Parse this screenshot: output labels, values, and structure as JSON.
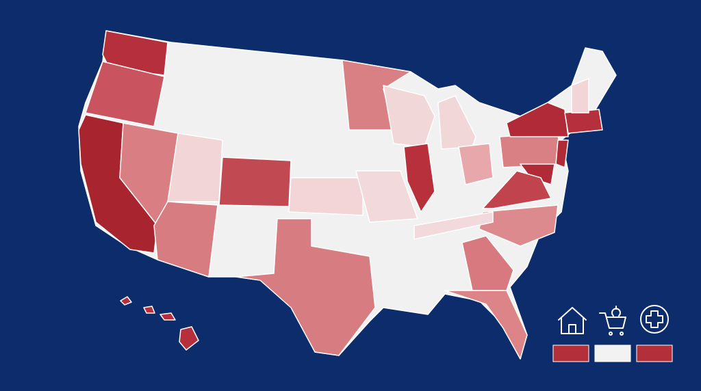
{
  "legend": {
    "swatches": [
      {
        "color": "#b3303b"
      },
      {
        "color": "#f2f2f2"
      },
      {
        "color": "#b3303b"
      }
    ]
  }
}
